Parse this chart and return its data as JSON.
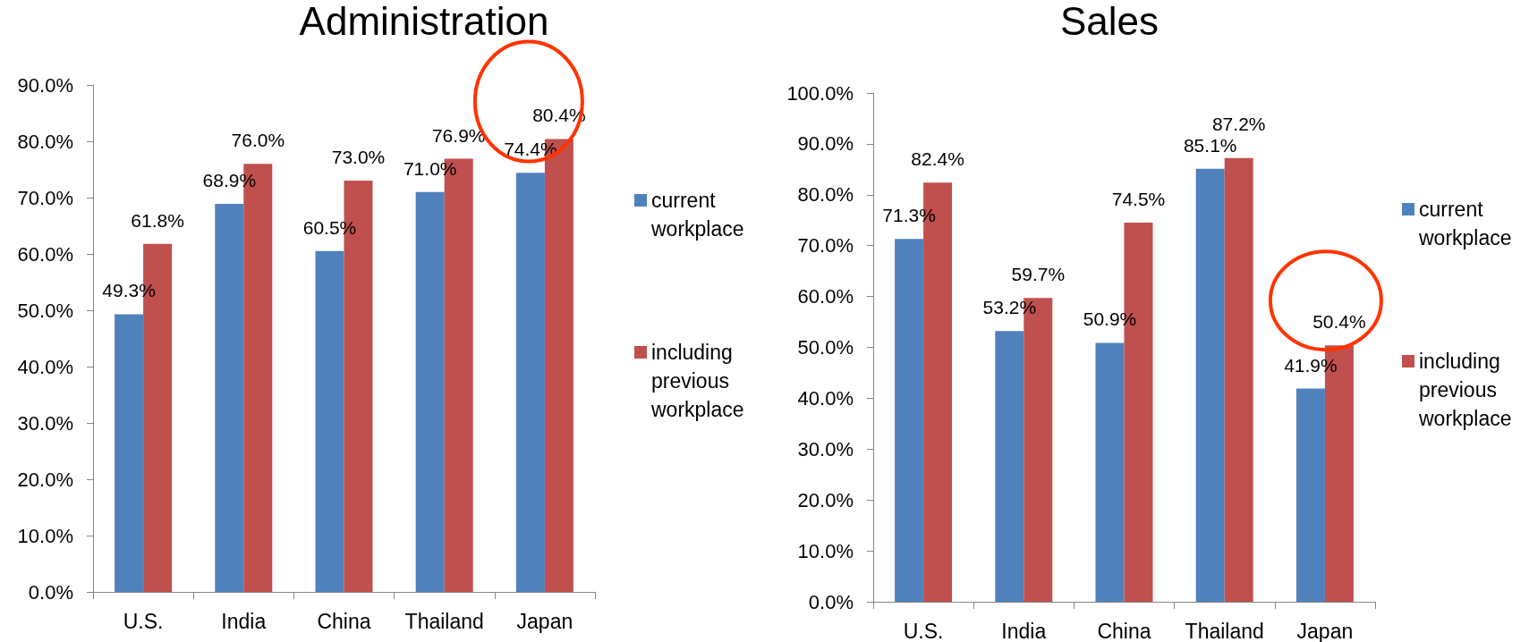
{
  "chart_data": [
    {
      "type": "bar",
      "title": "Administration",
      "categories": [
        "U.S.",
        "India",
        "China",
        "Thailand",
        "Japan"
      ],
      "series": [
        {
          "name": "current workplace",
          "color": "#4f81bd",
          "values": [
            49.3,
            68.9,
            60.5,
            71.0,
            74.4
          ],
          "value_labels": [
            "49.3%",
            "68.9%",
            "60.5%",
            "71.0%",
            "74.4%"
          ]
        },
        {
          "name": "including previous workplace",
          "color": "#c0504d",
          "values": [
            61.8,
            76.0,
            73.0,
            76.9,
            80.4
          ],
          "value_labels": [
            "61.8%",
            "76.0%",
            "73.0%",
            "76.9%",
            "80.4%"
          ]
        }
      ],
      "ylim": [
        0,
        90
      ],
      "yticks": [
        {
          "value": 0,
          "label": "0.0%"
        },
        {
          "value": 10,
          "label": "10.0%"
        },
        {
          "value": 20,
          "label": "20.0%"
        },
        {
          "value": 30,
          "label": "30.0%"
        },
        {
          "value": 40,
          "label": "40.0%"
        },
        {
          "value": 50,
          "label": "50.0%"
        },
        {
          "value": 60,
          "label": "60.0%"
        },
        {
          "value": 70,
          "label": "70.0%"
        },
        {
          "value": 80,
          "label": "80.0%"
        },
        {
          "value": 90,
          "label": "90.0%"
        }
      ],
      "legend": "right"
    },
    {
      "type": "bar",
      "title": "Sales",
      "categories": [
        "U.S.",
        "India",
        "China",
        "Thailand",
        "Japan"
      ],
      "series": [
        {
          "name": "current workplace",
          "color": "#4f81bd",
          "values": [
            71.3,
            53.2,
            50.9,
            85.1,
            41.9
          ],
          "value_labels": [
            "71.3%",
            "53.2%",
            "50.9%",
            "85.1%",
            "41.9%"
          ]
        },
        {
          "name": "including previous workplace",
          "color": "#c0504d",
          "values": [
            82.4,
            59.7,
            74.5,
            87.2,
            50.4
          ],
          "value_labels": [
            "82.4%",
            "59.7%",
            "74.5%",
            "87.2%",
            "50.4%"
          ]
        }
      ],
      "ylim": [
        0,
        100
      ],
      "yticks": [
        {
          "value": 0,
          "label": "0.0%"
        },
        {
          "value": 10,
          "label": "10.0%"
        },
        {
          "value": 20,
          "label": "20.0%"
        },
        {
          "value": 30,
          "label": "30.0%"
        },
        {
          "value": 40,
          "label": "40.0%"
        },
        {
          "value": 50,
          "label": "50.0%"
        },
        {
          "value": 60,
          "label": "60.0%"
        },
        {
          "value": 70,
          "label": "70.0%"
        },
        {
          "value": 80,
          "label": "80.0%"
        },
        {
          "value": 90,
          "label": "90.0%"
        },
        {
          "value": 100,
          "label": "100.0%"
        }
      ],
      "legend": "right"
    }
  ]
}
